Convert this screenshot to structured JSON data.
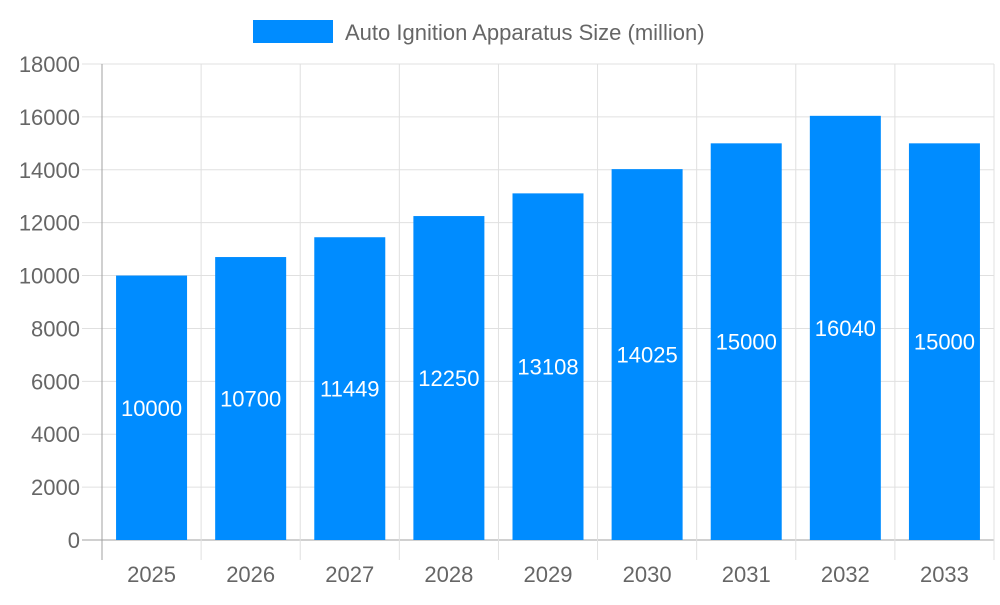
{
  "chart_data": {
    "type": "bar",
    "title": "",
    "xlabel": "",
    "ylabel": "",
    "categories": [
      "2025",
      "2026",
      "2027",
      "2028",
      "2029",
      "2030",
      "2031",
      "2032",
      "2033"
    ],
    "series": [
      {
        "name": "Auto Ignition Apparatus Size (million)",
        "values": [
          10000,
          10700,
          11449,
          12250,
          13108,
          14025,
          15000,
          16040,
          15000
        ],
        "color": "#008cff"
      }
    ],
    "ylim": [
      0,
      18000
    ],
    "yticks": [
      0,
      2000,
      4000,
      6000,
      8000,
      10000,
      12000,
      14000,
      16000,
      18000
    ],
    "grid": true,
    "legend": "top-center",
    "data_labels": true,
    "colors": {
      "bar": "#008cff",
      "grid": "#e0e0e0",
      "axis": "#a0a0a0",
      "text": "#666666",
      "label": "#ffffff"
    }
  }
}
